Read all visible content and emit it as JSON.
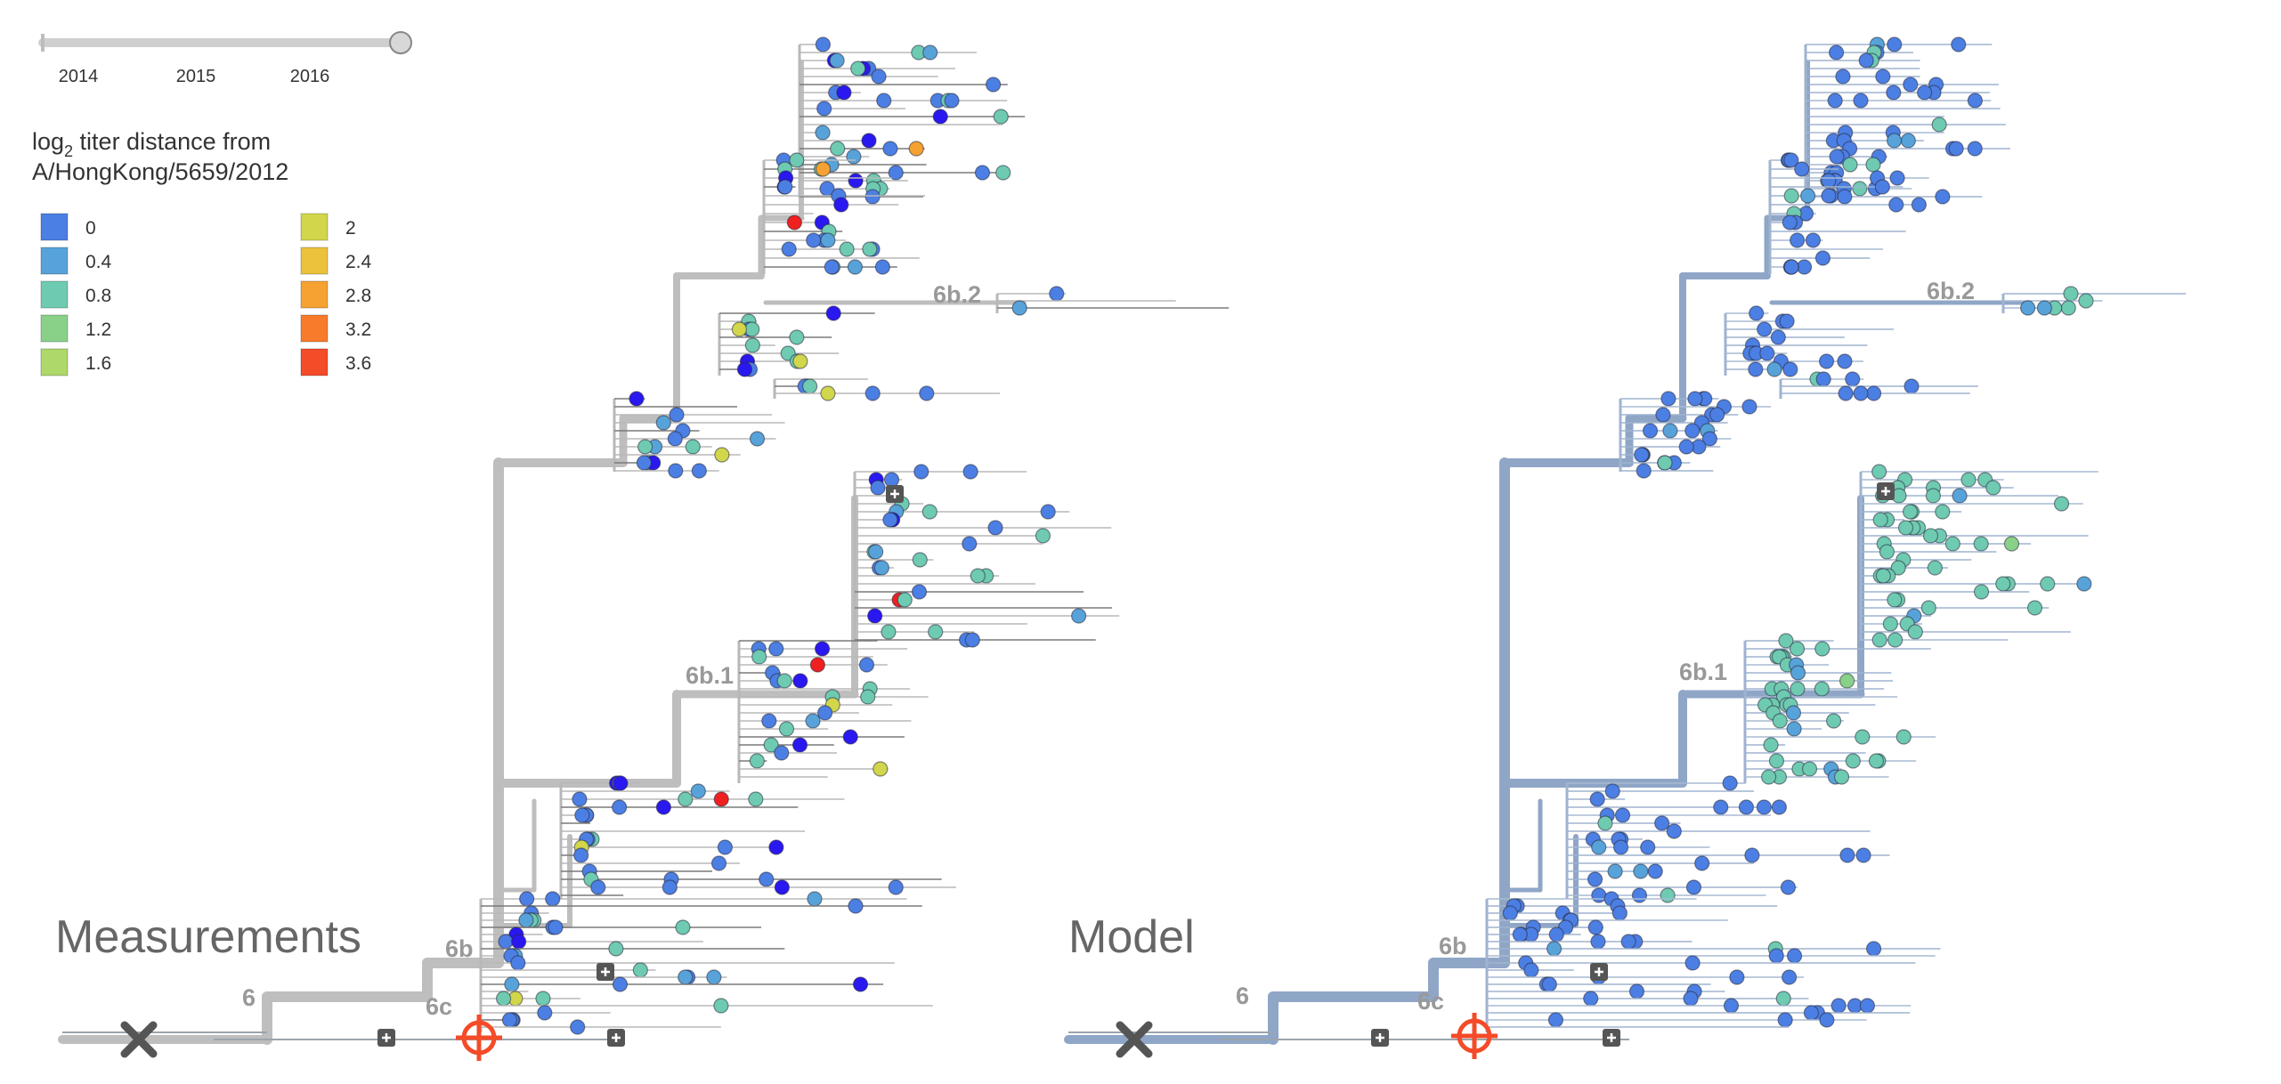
{
  "timeline": {
    "ticks": [
      "2014",
      "2015",
      "2016"
    ]
  },
  "legend": {
    "title_prefix": "log",
    "title_sub": "2",
    "title_rest": " titer distance from",
    "title_line2": "A/HongKong/5659/2012",
    "items": [
      {
        "label": "0",
        "color": "#4C7FE3"
      },
      {
        "label": "0.4",
        "color": "#57A3D9"
      },
      {
        "label": "0.8",
        "color": "#6ECAB1"
      },
      {
        "label": "1.2",
        "color": "#89D189"
      },
      {
        "label": "1.6",
        "color": "#AED96A"
      },
      {
        "label": "2",
        "color": "#D1D64B"
      },
      {
        "label": "2.4",
        "color": "#EAC23B"
      },
      {
        "label": "2.8",
        "color": "#F5A232"
      },
      {
        "label": "3.2",
        "color": "#F87B2C"
      },
      {
        "label": "3.6",
        "color": "#F44B29"
      }
    ]
  },
  "panels": [
    {
      "title": "Measurements",
      "trunk_color": "#BEBEBE",
      "clades": [
        "6",
        "6b",
        "6c",
        "6b.1",
        "6b.2"
      ]
    },
    {
      "title": "Model",
      "trunk_color": "#8FA6C7",
      "clades": [
        "6",
        "6b",
        "6c",
        "6b.1",
        "6b.2"
      ]
    }
  ],
  "icons": {
    "reference_marker": "crosshair-target-icon",
    "removed_marker": "x-mark-icon",
    "expand_marker": "plus-square-icon"
  }
}
